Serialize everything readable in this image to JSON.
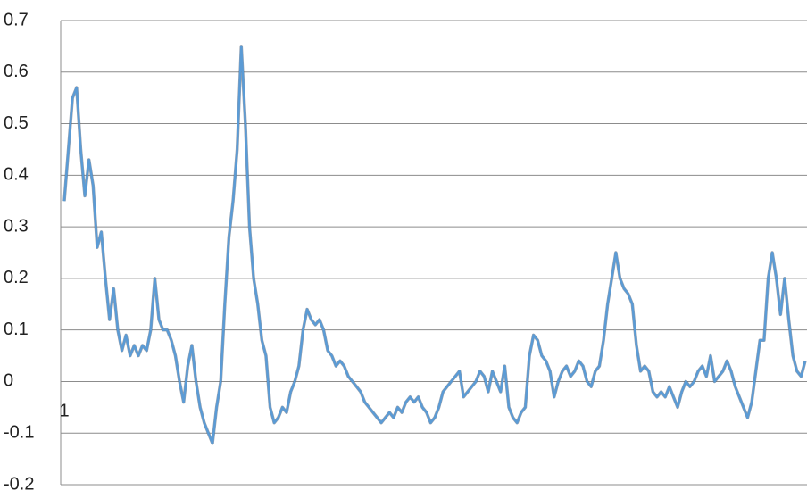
{
  "chart_data": {
    "type": "line",
    "color": "#5b9bd5",
    "ylim": [
      -0.2,
      0.7
    ],
    "yticks": [
      -0.2,
      -0.1,
      0,
      0.1,
      0.2,
      0.3,
      0.4,
      0.5,
      0.6,
      0.7
    ],
    "grid": true,
    "categories": [
      "1",
      null,
      null,
      null,
      null,
      null,
      null,
      null,
      null,
      null,
      null,
      null,
      null,
      null,
      null,
      null,
      null,
      null,
      null,
      null,
      null,
      null,
      null,
      null,
      null,
      null,
      null,
      null,
      null,
      null,
      null,
      null,
      null,
      null,
      null,
      null,
      null,
      null,
      null,
      null,
      null,
      null,
      null,
      null,
      null,
      null,
      null,
      null,
      null,
      null,
      null,
      null,
      null,
      null,
      null,
      null,
      null,
      null,
      null,
      null,
      null,
      null,
      null,
      null,
      null,
      null,
      null,
      null,
      null,
      null,
      null,
      null,
      null,
      null,
      null,
      null,
      null,
      null,
      null,
      null,
      null,
      null,
      null,
      null,
      null,
      null,
      null,
      null,
      null,
      null,
      null,
      null,
      null,
      null,
      null,
      null,
      null,
      null,
      null,
      null,
      null,
      null,
      null,
      null,
      null,
      null,
      null,
      null,
      null,
      null,
      null,
      null,
      null,
      null,
      null,
      null,
      null,
      null,
      null,
      null,
      null,
      null,
      null,
      null,
      null,
      null,
      null,
      null,
      null,
      null,
      null,
      null,
      null,
      null,
      null,
      null,
      null,
      null,
      null,
      null,
      null,
      null,
      null,
      null,
      null,
      null,
      null,
      null,
      null,
      null,
      null,
      null,
      null,
      null,
      null,
      null,
      null,
      null,
      null,
      null,
      null,
      null,
      null,
      null,
      null,
      null,
      null,
      null,
      null,
      null,
      null,
      null,
      null,
      null,
      null,
      null,
      null,
      null,
      null,
      null,
      null
    ],
    "values": [
      0.35,
      0.45,
      0.55,
      0.57,
      0.45,
      0.36,
      0.43,
      0.38,
      0.26,
      0.29,
      0.2,
      0.12,
      0.18,
      0.1,
      0.06,
      0.09,
      0.05,
      0.07,
      0.05,
      0.07,
      0.06,
      0.1,
      0.2,
      0.12,
      0.1,
      0.1,
      0.08,
      0.05,
      0.0,
      -0.04,
      0.03,
      0.07,
      0.0,
      -0.05,
      -0.08,
      -0.1,
      -0.12,
      -0.05,
      0.0,
      0.15,
      0.28,
      0.35,
      0.45,
      0.65,
      0.5,
      0.3,
      0.2,
      0.15,
      0.08,
      0.05,
      -0.05,
      -0.08,
      -0.07,
      -0.05,
      -0.06,
      -0.02,
      0.0,
      0.03,
      0.1,
      0.14,
      0.12,
      0.11,
      0.12,
      0.1,
      0.06,
      0.05,
      0.03,
      0.04,
      0.03,
      0.01,
      0.0,
      -0.01,
      -0.02,
      -0.04,
      -0.05,
      -0.06,
      -0.07,
      -0.08,
      -0.07,
      -0.06,
      -0.07,
      -0.05,
      -0.06,
      -0.04,
      -0.03,
      -0.04,
      -0.03,
      -0.05,
      -0.06,
      -0.08,
      -0.07,
      -0.05,
      -0.02,
      -0.01,
      0.0,
      0.01,
      0.02,
      -0.03,
      -0.02,
      -0.01,
      0.0,
      0.02,
      0.01,
      -0.02,
      0.02,
      0.0,
      -0.02,
      0.03,
      -0.05,
      -0.07,
      -0.08,
      -0.06,
      -0.05,
      0.05,
      0.09,
      0.08,
      0.05,
      0.04,
      0.02,
      -0.03,
      0.0,
      0.02,
      0.03,
      0.01,
      0.02,
      0.04,
      0.03,
      0.0,
      -0.01,
      0.02,
      0.03,
      0.08,
      0.15,
      0.2,
      0.25,
      0.2,
      0.18,
      0.17,
      0.15,
      0.07,
      0.02,
      0.03,
      0.02,
      -0.02,
      -0.03,
      -0.02,
      -0.03,
      -0.01,
      -0.03,
      -0.05,
      -0.02,
      0.0,
      -0.01,
      0.0,
      0.02,
      0.03,
      0.01,
      0.05,
      0.0,
      0.01,
      0.02,
      0.04,
      0.02,
      -0.01,
      -0.03,
      -0.05,
      -0.07,
      -0.04,
      0.02,
      0.08,
      0.08,
      0.2,
      0.25,
      0.2,
      0.13,
      0.2,
      0.12,
      0.05,
      0.02,
      0.01,
      0.04
    ]
  }
}
